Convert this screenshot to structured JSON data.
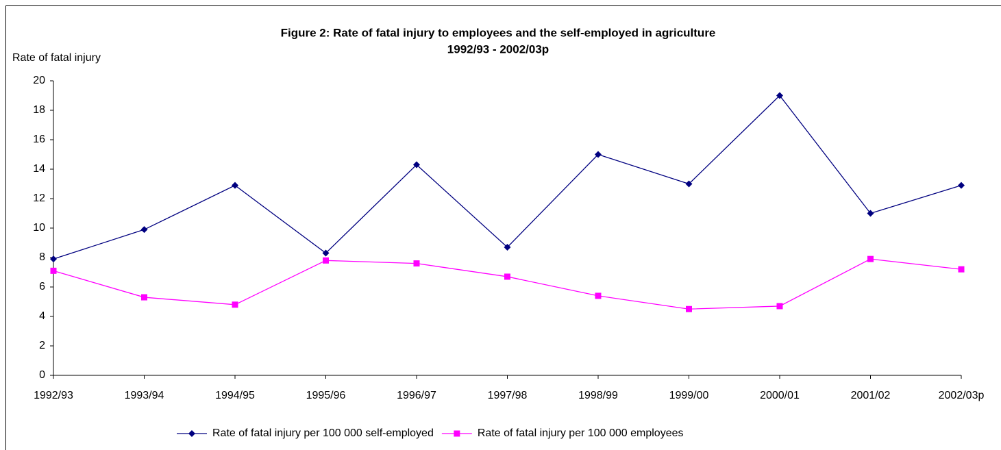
{
  "chart_data": {
    "type": "line",
    "title": "Figure 2: Rate of fatal injury to employees and the self-employed in agriculture",
    "subtitle": "1992/93 - 2002/03p",
    "y_label": "Rate of fatal injury",
    "categories": [
      "1992/93",
      "1993/94",
      "1994/95",
      "1995/96",
      "1996/97",
      "1997/98",
      "1998/99",
      "1999/00",
      "2000/01",
      "2001/02",
      "2002/03p"
    ],
    "series": [
      {
        "name": "Rate of fatal injury per 100 000 self-employed",
        "color": "#000080",
        "marker": "diamond",
        "values": [
          7.9,
          9.9,
          12.9,
          8.3,
          14.3,
          8.7,
          15.0,
          13.0,
          19.0,
          11.0,
          12.9
        ]
      },
      {
        "name": "Rate of fatal injury per 100 000 employees",
        "color": "#ff00ff",
        "marker": "square",
        "values": [
          7.1,
          5.3,
          4.8,
          7.8,
          7.6,
          6.7,
          5.4,
          4.5,
          4.7,
          7.9,
          7.2
        ]
      }
    ],
    "ylim": [
      0,
      20
    ],
    "yticks": [
      0,
      2,
      4,
      6,
      8,
      10,
      12,
      14,
      16,
      18,
      20
    ],
    "grid": false,
    "legend": "bottom"
  }
}
